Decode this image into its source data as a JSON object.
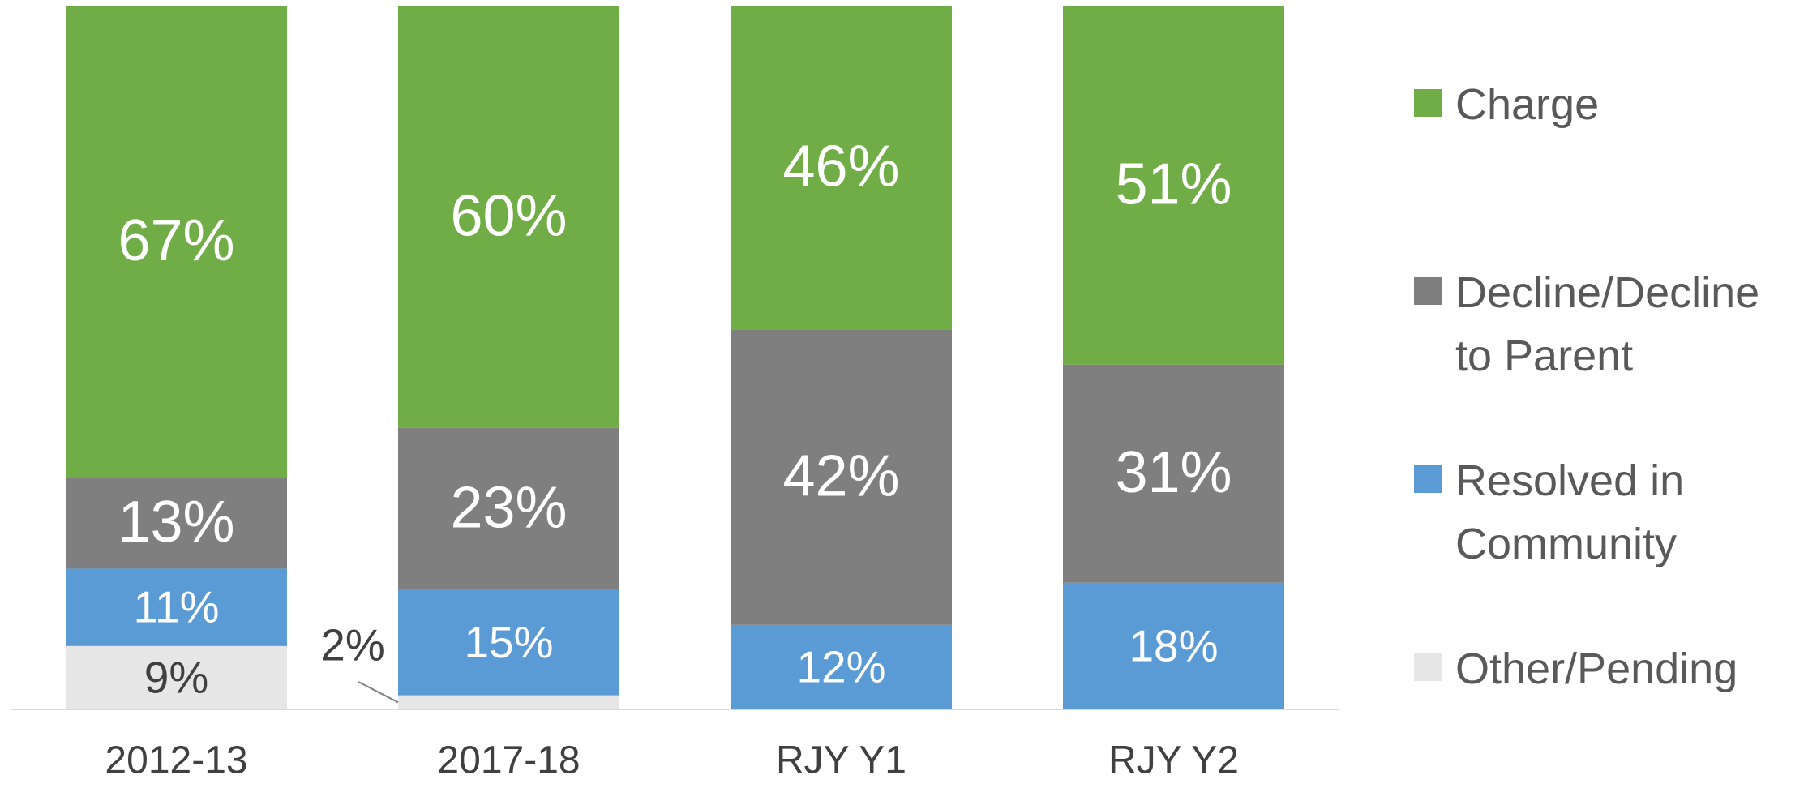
{
  "chart_data": {
    "type": "stacked-bar",
    "categories": [
      "2012-13",
      "2017-18",
      "RJY Y1",
      "RJY Y2"
    ],
    "ylim": [
      0,
      100
    ],
    "series": [
      {
        "name": "Other/Pending",
        "color": "#e7e6e6",
        "label_color": "#404040",
        "values": [
          9,
          2,
          null,
          null
        ],
        "value_labels": [
          "9%",
          "2%",
          null,
          null
        ]
      },
      {
        "name": "Resolved in Community",
        "color": "#5b9bd5",
        "label_color": "#ffffff",
        "values": [
          11,
          15,
          12,
          18
        ],
        "value_labels": [
          "11%",
          "15%",
          "12%",
          "18%"
        ]
      },
      {
        "name": "Decline/Decline to Parent",
        "color": "#7f7f7f",
        "label_color": "#ffffff",
        "values": [
          13,
          23,
          42,
          31
        ],
        "value_labels": [
          "13%",
          "23%",
          "42%",
          "31%"
        ]
      },
      {
        "name": "Charge",
        "color": "#70ad47",
        "label_color": "#ffffff",
        "values": [
          67,
          60,
          46,
          51
        ],
        "value_labels": [
          "67%",
          "60%",
          "46%",
          "51%"
        ]
      }
    ]
  }
}
